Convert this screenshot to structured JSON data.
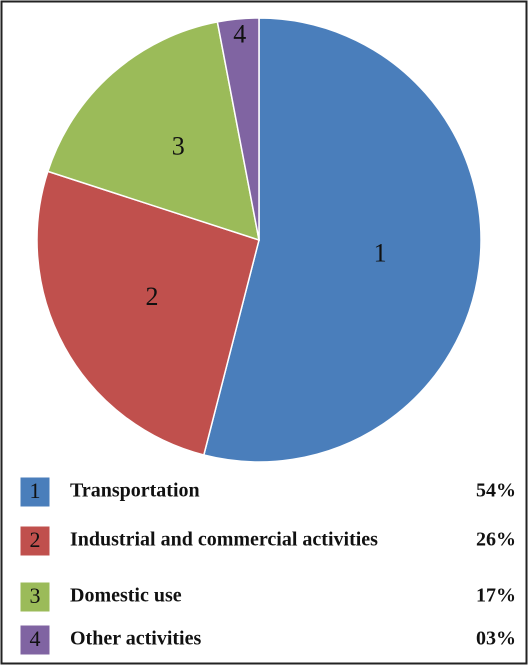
{
  "chart_data": {
    "type": "pie",
    "categories": [
      "Transportation",
      "Industrial and commercial activities",
      "Domestic use",
      "Other activities"
    ],
    "slice_labels": [
      "1",
      "2",
      "3",
      "4"
    ],
    "values": [
      54,
      26,
      17,
      3
    ],
    "value_labels": [
      "54%",
      "26%",
      "17%",
      "03%"
    ],
    "colors": [
      "#4a7ebb",
      "#c0504d",
      "#9bbb59",
      "#8064a2"
    ],
    "start_angle": 0,
    "direction": "clockwise"
  }
}
